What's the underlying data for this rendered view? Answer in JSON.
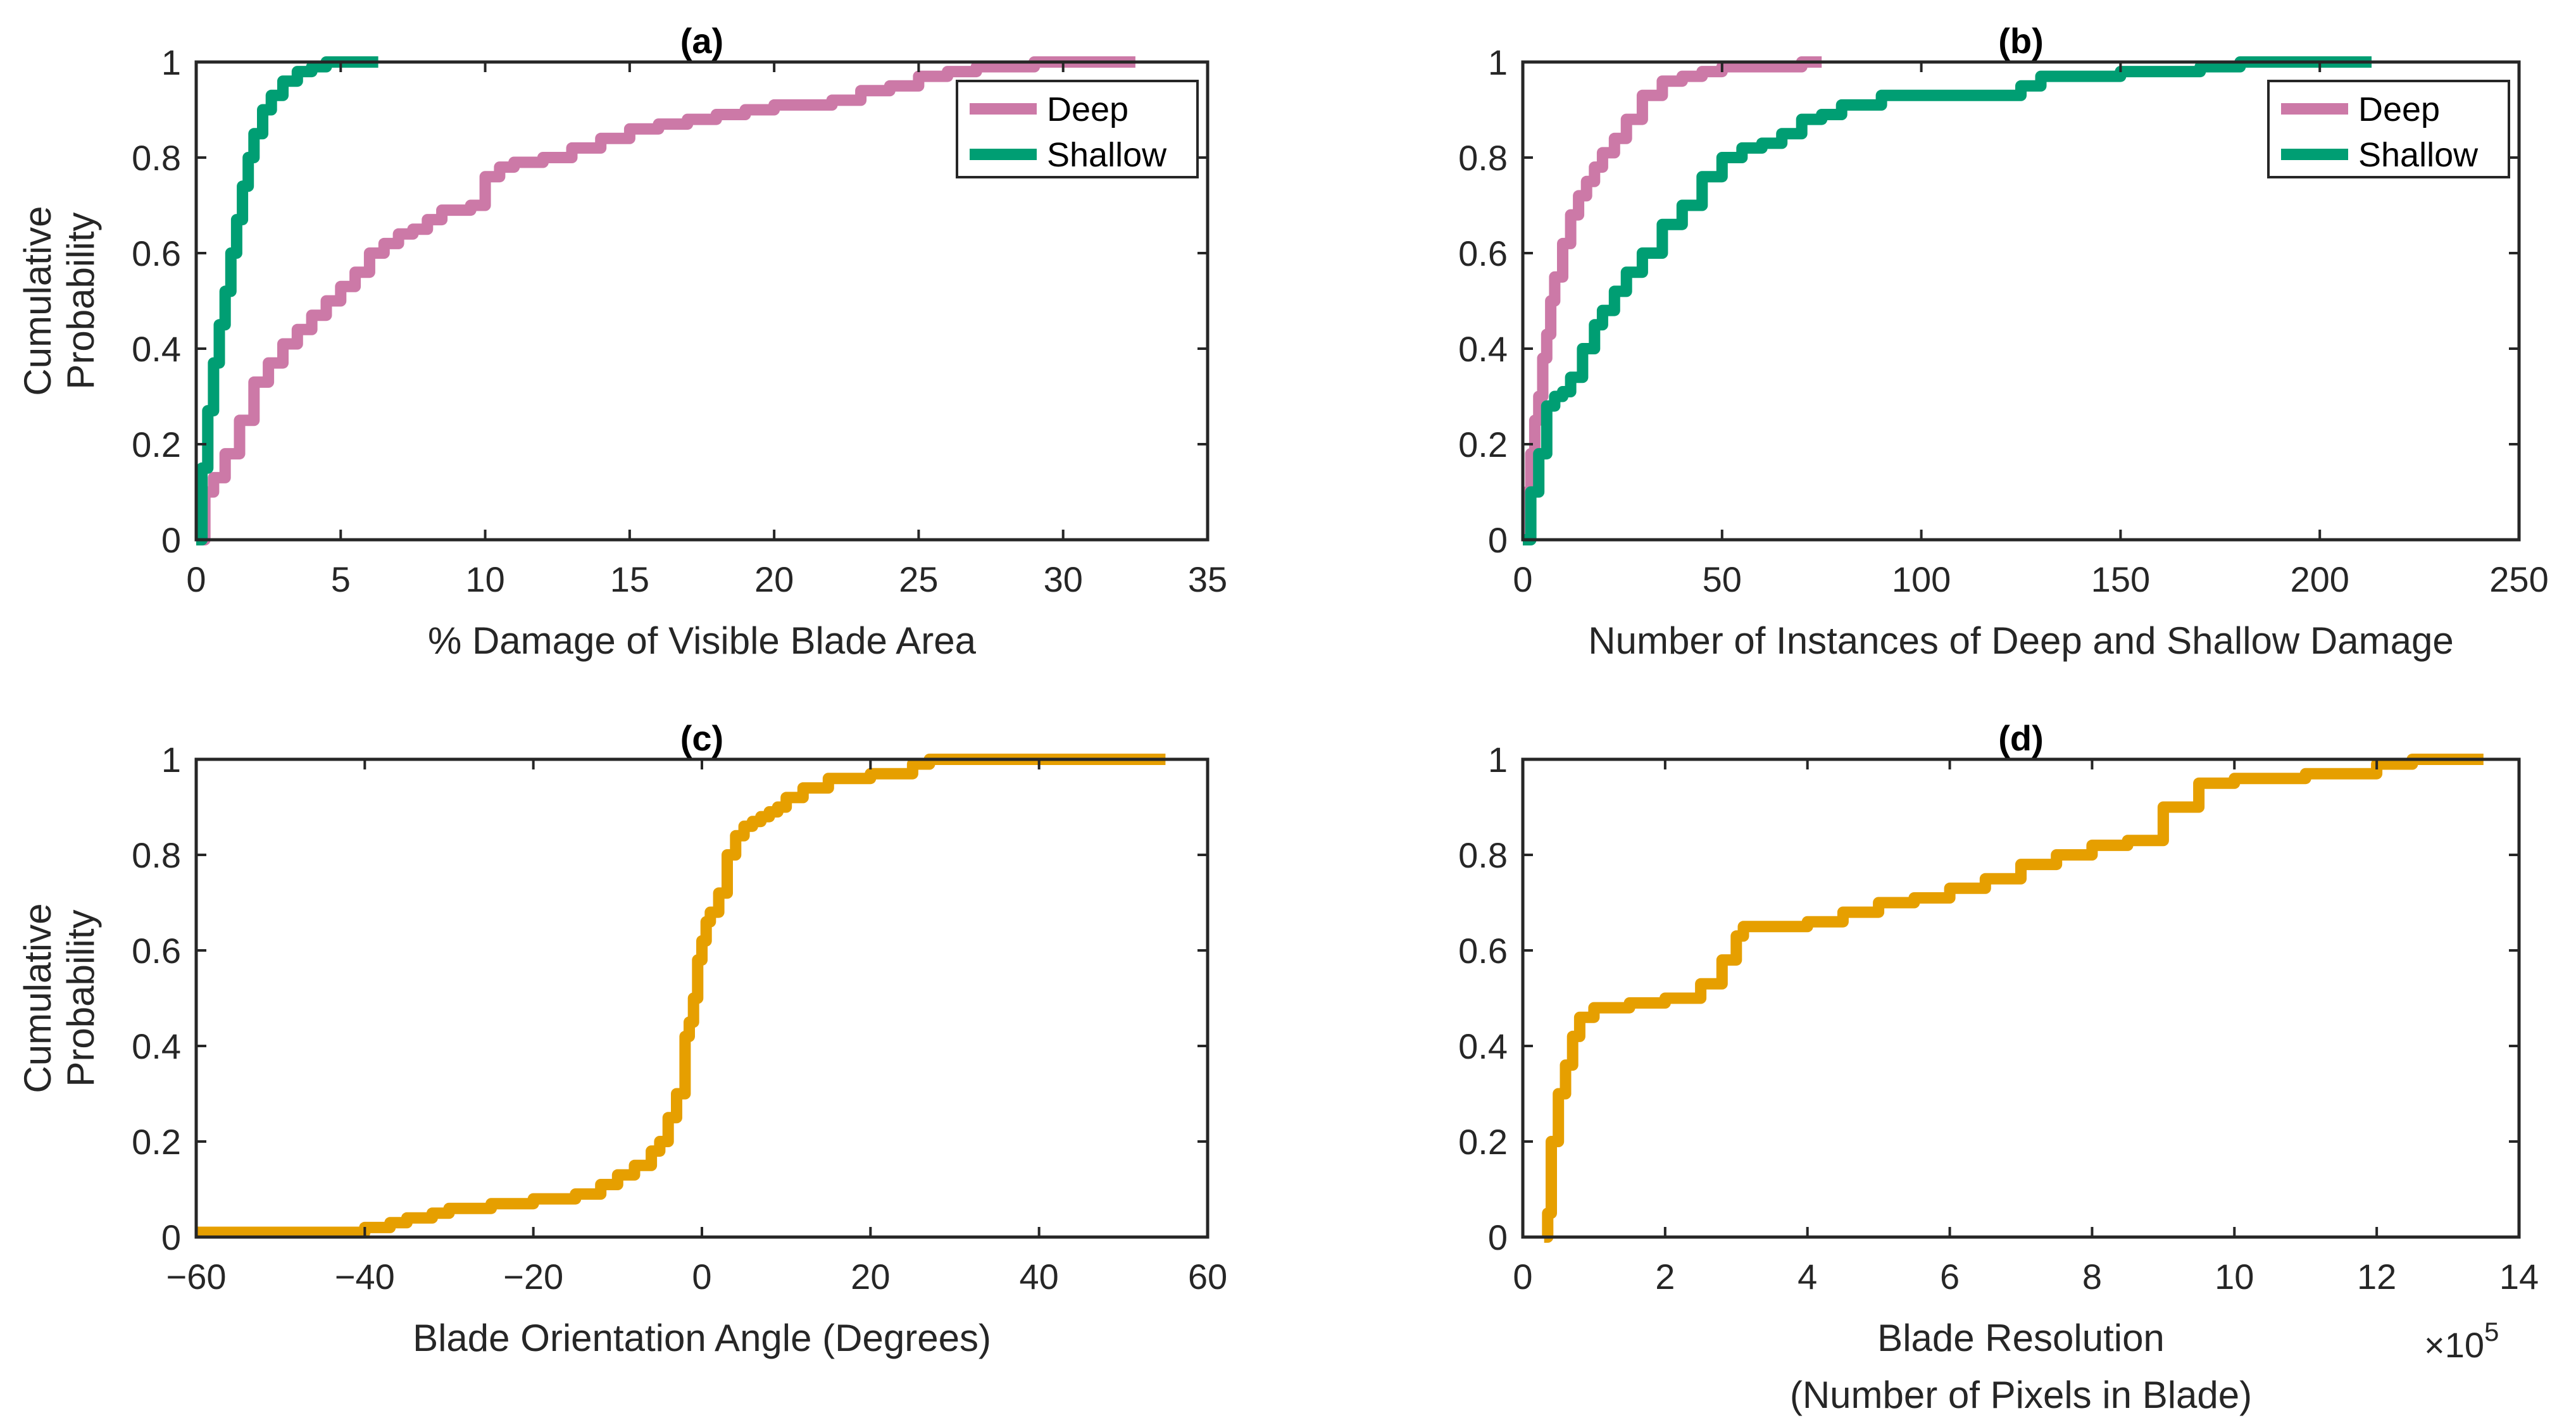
{
  "chart_data": [
    {
      "id": "a",
      "type": "line",
      "step": true,
      "title": "(a)",
      "xlabel": "% Damage of Visible Blade Area",
      "ylabel": [
        "Cumulative",
        "Probability"
      ],
      "xlim": [
        0,
        35
      ],
      "ylim": [
        0,
        1
      ],
      "xticks": [
        0,
        5,
        10,
        15,
        20,
        25,
        30,
        35
      ],
      "yticks": [
        0,
        0.2,
        0.4,
        0.6,
        0.8,
        1
      ],
      "xtick_labels": [
        "0",
        "5",
        "10",
        "15",
        "20",
        "25",
        "30",
        "35"
      ],
      "ytick_labels": [
        "0",
        "0.2",
        "0.4",
        "0.6",
        "0.8",
        "1"
      ],
      "legend": {
        "position": "top-right",
        "entries": [
          "Deep",
          "Shallow"
        ]
      },
      "series": [
        {
          "name": "Deep",
          "color": "#CC79A7",
          "x": [
            0,
            0.3,
            0.6,
            1,
            1.5,
            2,
            2.5,
            3,
            3.5,
            4,
            4.5,
            5,
            5.5,
            6,
            6.5,
            7,
            7.5,
            8,
            8.5,
            9,
            9.5,
            10,
            10.5,
            11,
            12,
            13,
            14,
            15,
            16,
            17,
            18,
            19,
            20,
            21,
            22,
            23,
            24,
            25,
            26,
            27,
            28,
            29,
            30,
            31,
            32.5
          ],
          "y": [
            0,
            0.1,
            0.13,
            0.18,
            0.25,
            0.33,
            0.37,
            0.41,
            0.44,
            0.47,
            0.5,
            0.53,
            0.56,
            0.6,
            0.62,
            0.64,
            0.65,
            0.67,
            0.69,
            0.69,
            0.7,
            0.76,
            0.78,
            0.79,
            0.8,
            0.82,
            0.84,
            0.86,
            0.87,
            0.88,
            0.89,
            0.9,
            0.91,
            0.91,
            0.92,
            0.94,
            0.95,
            0.97,
            0.98,
            0.99,
            0.99,
            1,
            1,
            1,
            1
          ]
        },
        {
          "name": "Shallow",
          "color": "#009E73",
          "x": [
            0,
            0.2,
            0.4,
            0.6,
            0.8,
            1,
            1.2,
            1.4,
            1.6,
            1.8,
            2,
            2.3,
            2.6,
            3,
            3.5,
            4,
            4.5,
            5,
            5.5,
            6.3
          ],
          "y": [
            0,
            0.15,
            0.27,
            0.37,
            0.45,
            0.52,
            0.6,
            0.67,
            0.74,
            0.8,
            0.85,
            0.9,
            0.93,
            0.96,
            0.98,
            0.99,
            1,
            1,
            1,
            1
          ]
        }
      ]
    },
    {
      "id": "b",
      "type": "line",
      "step": true,
      "title": "(b)",
      "xlabel": "Number of Instances of Deep and Shallow Damage",
      "ylabel": null,
      "xlim": [
        0,
        250
      ],
      "ylim": [
        0,
        1
      ],
      "xticks": [
        0,
        50,
        100,
        150,
        200,
        250
      ],
      "yticks": [
        0,
        0.2,
        0.4,
        0.6,
        0.8,
        1
      ],
      "xtick_labels": [
        "0",
        "50",
        "100",
        "150",
        "200",
        "250"
      ],
      "ytick_labels": [
        "0",
        "0.2",
        "0.4",
        "0.6",
        "0.8",
        "1"
      ],
      "legend": {
        "position": "top-right",
        "entries": [
          "Deep",
          "Shallow"
        ]
      },
      "series": [
        {
          "name": "Deep",
          "color": "#CC79A7",
          "x": [
            0,
            1,
            2,
            3,
            4,
            5,
            6,
            7,
            8,
            10,
            12,
            14,
            16,
            18,
            20,
            23,
            26,
            30,
            35,
            40,
            45,
            50,
            60,
            70,
            75
          ],
          "y": [
            0,
            0.1,
            0.18,
            0.25,
            0.3,
            0.38,
            0.43,
            0.5,
            0.55,
            0.62,
            0.68,
            0.72,
            0.75,
            0.78,
            0.81,
            0.84,
            0.88,
            0.93,
            0.96,
            0.97,
            0.98,
            0.99,
            0.99,
            1,
            1
          ]
        },
        {
          "name": "Shallow",
          "color": "#009E73",
          "x": [
            0,
            2,
            4,
            6,
            8,
            10,
            12,
            15,
            18,
            20,
            23,
            26,
            30,
            35,
            40,
            45,
            50,
            55,
            60,
            65,
            70,
            75,
            80,
            90,
            100,
            110,
            120,
            125,
            130,
            140,
            150,
            160,
            170,
            175,
            180,
            190,
            200,
            213
          ],
          "y": [
            0,
            0.1,
            0.18,
            0.28,
            0.3,
            0.31,
            0.34,
            0.4,
            0.45,
            0.48,
            0.52,
            0.56,
            0.6,
            0.66,
            0.7,
            0.76,
            0.8,
            0.82,
            0.83,
            0.85,
            0.88,
            0.89,
            0.91,
            0.93,
            0.93,
            0.93,
            0.93,
            0.95,
            0.97,
            0.97,
            0.98,
            0.98,
            0.99,
            0.99,
            1,
            1,
            1,
            1
          ]
        }
      ]
    },
    {
      "id": "c",
      "type": "line",
      "step": true,
      "title": "(c)",
      "xlabel": "Blade Orientation Angle (Degrees)",
      "ylabel": [
        "Cumulative",
        "Probability"
      ],
      "xlim": [
        -60,
        60
      ],
      "ylim": [
        0,
        1
      ],
      "xticks": [
        -60,
        -40,
        -20,
        0,
        20,
        40,
        60
      ],
      "yticks": [
        0,
        0.2,
        0.4,
        0.6,
        0.8,
        1
      ],
      "xtick_labels": [
        "−60",
        "−40",
        "−20",
        "0",
        "20",
        "40",
        "60"
      ],
      "ytick_labels": [
        "0",
        "0.2",
        "0.4",
        "0.6",
        "0.8",
        "1"
      ],
      "legend": null,
      "series": [
        {
          "name": "Blade orientation",
          "color": "#E69F00",
          "x": [
            -60,
            -45,
            -40,
            -37,
            -35,
            -32,
            -30,
            -25,
            -22,
            -20,
            -15,
            -12,
            -10,
            -8,
            -6,
            -5,
            -4,
            -3,
            -2,
            -1.5,
            -1,
            -0.5,
            0,
            0.5,
            1,
            2,
            3,
            4,
            5,
            6,
            7,
            8,
            9,
            10,
            12,
            15,
            20,
            25,
            27,
            30,
            40,
            55
          ],
          "y": [
            0.01,
            0.01,
            0.02,
            0.03,
            0.04,
            0.05,
            0.06,
            0.07,
            0.07,
            0.08,
            0.09,
            0.11,
            0.13,
            0.15,
            0.18,
            0.2,
            0.25,
            0.3,
            0.42,
            0.45,
            0.5,
            0.58,
            0.62,
            0.66,
            0.68,
            0.72,
            0.8,
            0.84,
            0.86,
            0.87,
            0.88,
            0.89,
            0.9,
            0.92,
            0.94,
            0.96,
            0.97,
            0.99,
            1,
            1,
            1,
            1
          ]
        }
      ]
    },
    {
      "id": "d",
      "type": "line",
      "step": true,
      "title": "(d)",
      "xlabel": [
        "Blade Resolution",
        "(Number of Pixels in Blade)"
      ],
      "ylabel": null,
      "x_multiplier": {
        "base": "×10",
        "exponent": "5"
      },
      "xlim": [
        0,
        14
      ],
      "ylim": [
        0,
        1
      ],
      "xticks": [
        0,
        2,
        4,
        6,
        8,
        10,
        12,
        14
      ],
      "yticks": [
        0,
        0.2,
        0.4,
        0.6,
        0.8,
        1
      ],
      "xtick_labels": [
        "0",
        "2",
        "4",
        "6",
        "8",
        "10",
        "12",
        "14"
      ],
      "ytick_labels": [
        "0",
        "0.2",
        "0.4",
        "0.6",
        "0.8",
        "1"
      ],
      "legend": null,
      "series": [
        {
          "name": "Blade resolution",
          "color": "#E69F00",
          "x": [
            0.3,
            0.35,
            0.4,
            0.5,
            0.6,
            0.7,
            0.8,
            1,
            1.5,
            2,
            2.5,
            2.8,
            3,
            3.1,
            3.5,
            4,
            4.5,
            5,
            5.5,
            6,
            6.5,
            7,
            7.5,
            8,
            8.5,
            9,
            9.5,
            10,
            11,
            12,
            12.5,
            13.5
          ],
          "y": [
            0,
            0.05,
            0.2,
            0.3,
            0.36,
            0.42,
            0.46,
            0.48,
            0.49,
            0.5,
            0.53,
            0.58,
            0.63,
            0.65,
            0.65,
            0.66,
            0.68,
            0.7,
            0.71,
            0.73,
            0.75,
            0.78,
            0.8,
            0.82,
            0.83,
            0.9,
            0.95,
            0.96,
            0.97,
            0.99,
            1,
            1
          ]
        }
      ]
    }
  ]
}
